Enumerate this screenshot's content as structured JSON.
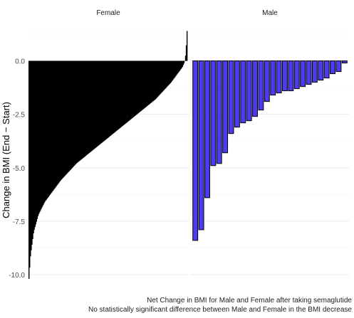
{
  "chart_data": {
    "type": "bar",
    "ylabel": "Change in BMI (End − Start)",
    "ylim": [
      -10.2,
      1.45
    ],
    "yticks": [
      0.0,
      -2.5,
      -5.0,
      -7.5,
      -10.0
    ],
    "ytick_labels": [
      "0.0",
      "-2.5",
      "-5.0",
      "-7.5",
      "-10.0"
    ],
    "grid": true,
    "panels": [
      {
        "name": "Female",
        "fill": "#000000",
        "sorted": "ascending-change",
        "bar_count": 210,
        "min_value": -10.2,
        "max_value": 1.4,
        "curve_values": [
          [
            0.0,
            -10.2
          ],
          [
            0.01,
            -9.1
          ],
          [
            0.03,
            -8.0
          ],
          [
            0.06,
            -7.2
          ],
          [
            0.1,
            -6.6
          ],
          [
            0.15,
            -6.1
          ],
          [
            0.2,
            -5.6
          ],
          [
            0.25,
            -5.2
          ],
          [
            0.3,
            -4.8
          ],
          [
            0.35,
            -4.5
          ],
          [
            0.4,
            -4.2
          ],
          [
            0.45,
            -3.9
          ],
          [
            0.5,
            -3.6
          ],
          [
            0.55,
            -3.3
          ],
          [
            0.6,
            -3.0
          ],
          [
            0.65,
            -2.7
          ],
          [
            0.7,
            -2.4
          ],
          [
            0.75,
            -2.1
          ],
          [
            0.8,
            -1.8
          ],
          [
            0.85,
            -1.4
          ],
          [
            0.9,
            -1.0
          ],
          [
            0.94,
            -0.6
          ],
          [
            0.97,
            -0.3
          ],
          [
            0.985,
            -0.05
          ],
          [
            0.99,
            0.2
          ],
          [
            0.995,
            0.7
          ],
          [
            1.0,
            1.4
          ]
        ]
      },
      {
        "name": "Male",
        "fill": "#4d3bf0",
        "values": [
          -8.4,
          -7.9,
          -6.4,
          -4.9,
          -4.8,
          -4.3,
          -3.4,
          -3.1,
          -2.9,
          -2.8,
          -2.6,
          -2.3,
          -1.9,
          -1.6,
          -1.5,
          -1.4,
          -1.4,
          -1.3,
          -1.2,
          -1.1,
          -1.0,
          -0.9,
          -0.8,
          -0.6,
          -0.5,
          -0.1
        ]
      }
    ]
  },
  "caption": {
    "line1": "Net Change in BMI for Male and Female after taking semaglutide",
    "line2": "No statistically significant difference between Male and Female in the BMI decrease"
  },
  "colors": {
    "grid": "#ebebeb",
    "female": "#000000",
    "male": "#4d3bf0",
    "bar_outline": "#000000"
  }
}
